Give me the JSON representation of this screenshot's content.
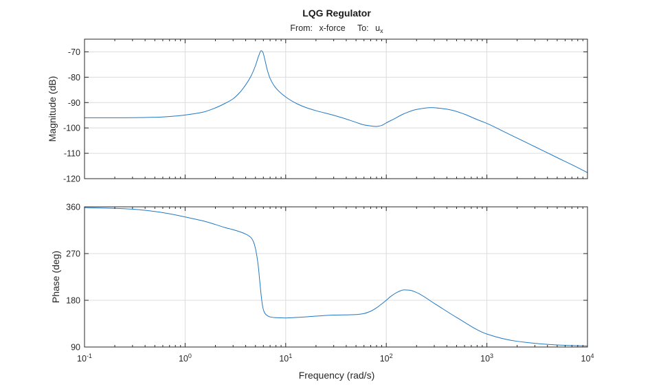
{
  "chart_data": {
    "type": "line",
    "title": "LQG Regulator",
    "subtitle": {
      "from_label": "From:",
      "from_value": "x-force",
      "to_label": "To:",
      "to_value": "u",
      "to_subscript": "x"
    },
    "xlabel": "Frequency (rad/s)",
    "xscale": "log",
    "xlim": [
      0.1,
      10000
    ],
    "xticks": [
      {
        "base": "10",
        "exp": "-1"
      },
      {
        "base": "10",
        "exp": "0"
      },
      {
        "base": "10",
        "exp": "1"
      },
      {
        "base": "10",
        "exp": "2"
      },
      {
        "base": "10",
        "exp": "3"
      },
      {
        "base": "10",
        "exp": "4"
      }
    ],
    "panels": [
      {
        "name": "magnitude",
        "ylabel": "Magnitude (dB)",
        "ylim": [
          -120,
          -65
        ],
        "yticks": [
          "-70",
          "-80",
          "-90",
          "-100",
          "-110",
          "-120"
        ],
        "ytick_values": [
          -70,
          -80,
          -90,
          -100,
          -110,
          -120
        ],
        "grid": true,
        "series": [
          {
            "name": "magnitude",
            "x": [
              0.1,
              0.2,
              0.3,
              0.5,
              0.8,
              1.0,
              1.5,
              2.0,
              2.5,
              3.0,
              3.5,
              4.0,
              4.5,
              5.0,
              5.4,
              5.7,
              5.9,
              6.2,
              6.5,
              7.0,
              8.0,
              10,
              13,
              16,
              20,
              30,
              40,
              50,
              60,
              70,
              80,
              90,
              100,
              120,
              150,
              200,
              280,
              350,
              450,
              600,
              800,
              1000,
              1500,
              2000,
              3000,
              5000,
              7000,
              10000
            ],
            "y": [
              -96.0,
              -96.0,
              -95.95,
              -95.8,
              -95.3,
              -94.9,
              -93.8,
              -92.1,
              -90.3,
              -88.5,
              -86.0,
              -83.0,
              -79.7,
              -75.5,
              -71.5,
              -69.5,
              -70.0,
              -73.0,
              -76.5,
              -80.5,
              -84.3,
              -87.8,
              -90.5,
              -92.0,
              -93.2,
              -95.0,
              -96.5,
              -97.8,
              -98.8,
              -99.2,
              -99.4,
              -99.0,
              -98.0,
              -96.4,
              -94.4,
              -92.7,
              -92.0,
              -92.3,
              -93.0,
              -94.6,
              -96.7,
              -98.2,
              -101.6,
              -104.0,
              -107.4,
              -111.7,
              -114.5,
              -117.6
            ]
          }
        ]
      },
      {
        "name": "phase",
        "ylabel": "Phase (deg)",
        "ylim": [
          90,
          360
        ],
        "yticks": [
          "360",
          "270",
          "180",
          "90"
        ],
        "ytick_values": [
          360,
          270,
          180,
          90
        ],
        "grid": true,
        "series": [
          {
            "name": "phase",
            "x": [
              0.1,
              0.2,
              0.3,
              0.5,
              0.8,
              1.0,
              1.5,
              2.0,
              2.5,
              3.0,
              3.5,
              4.0,
              4.5,
              4.8,
              5.0,
              5.2,
              5.4,
              5.5,
              5.6,
              5.7,
              5.8,
              5.9,
              6.1,
              6.4,
              7.0,
              8.0,
              10,
              13,
              20,
              30,
              50,
              60,
              70,
              80,
              90,
              100,
              110,
              130,
              150,
              170,
              200,
              300,
              500,
              1000,
              2000,
              5000,
              10000
            ],
            "y": [
              358.5,
              357.0,
              355.5,
              351.0,
              344.5,
              340.5,
              333.0,
              326.0,
              320.0,
              316.0,
              312.0,
              307.5,
              301.0,
              292.0,
              280.0,
              262.0,
              237.0,
              220.0,
              205.0,
              190.0,
              178.0,
              168.0,
              158.0,
              152.0,
              148.0,
              146.5,
              146.0,
              147.0,
              149.5,
              151.5,
              152.5,
              154.5,
              159.0,
              165.5,
              173.0,
              180.0,
              187.0,
              196.0,
              200.0,
              199.5,
              195.0,
              174.0,
              147.0,
              115.0,
              101.0,
              94.0,
              92.0
            ]
          }
        ]
      }
    ],
    "color": "#1f77c4"
  }
}
